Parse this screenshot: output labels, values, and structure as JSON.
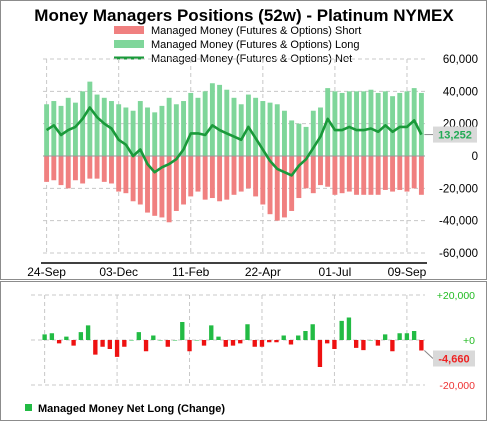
{
  "chart_data": [
    {
      "type": "bar+line",
      "title": "Money Managers Positions  (52w) - Platinum  NYMEX",
      "legend": [
        "Managed Money (Futures & Options)  Short",
        "Managed Money (Futures & Options)  Long",
        "Managed Money (Futures & Options)  Net"
      ],
      "legend_position": "top",
      "x_tick_labels": [
        "24-Sep",
        "03-Dec",
        "11-Feb",
        "22-Apr",
        "01-Jul",
        "09-Sep"
      ],
      "y_tick_labels": [
        "60,000",
        "40,000",
        "20,000",
        "0",
        "-20,000",
        "-40,000",
        "-60,000"
      ],
      "ylim": [
        -60000,
        60000
      ],
      "grid": true,
      "series": [
        {
          "name": "Managed Money (Futures & Options)  Long",
          "color": "#7fd69a",
          "values": [
            32000,
            34000,
            31000,
            36000,
            33000,
            40000,
            46000,
            38000,
            36000,
            34000,
            32000,
            30000,
            28000,
            34000,
            30000,
            27000,
            31000,
            36000,
            32000,
            34000,
            39000,
            36000,
            40000,
            45000,
            44000,
            41000,
            36000,
            32000,
            38000,
            36000,
            34000,
            33000,
            32000,
            28000,
            22000,
            20000,
            18000,
            28000,
            30000,
            42000,
            40000,
            39000,
            40000,
            40000,
            40000,
            41000,
            39000,
            40000,
            37000,
            39000,
            40000,
            42000,
            39000
          ]
        },
        {
          "name": "Managed Money (Futures & Options)  Short",
          "color": "#f08080",
          "values": [
            -16000,
            -15000,
            -18000,
            -20000,
            -15000,
            -17000,
            -14000,
            -14000,
            -16000,
            -17000,
            -22000,
            -23000,
            -28000,
            -30000,
            -35000,
            -37000,
            -38000,
            -41000,
            -34000,
            -30000,
            -25000,
            -22000,
            -27000,
            -26000,
            -28000,
            -27000,
            -24000,
            -22000,
            -20000,
            -25000,
            -30000,
            -36000,
            -40000,
            -38000,
            -34000,
            -26000,
            -20000,
            -23000,
            -18000,
            -19000,
            -24000,
            -23000,
            -22000,
            -24000,
            -24000,
            -24000,
            -24000,
            -21000,
            -22000,
            -21000,
            -22000,
            -20000,
            -24000
          ]
        },
        {
          "name": "Managed Money (Futures & Options)  Net",
          "color": "#1a9a3a",
          "values": [
            16000,
            19000,
            13000,
            16000,
            18000,
            23000,
            30000,
            24000,
            20000,
            17000,
            10000,
            7000,
            0,
            4000,
            -5000,
            -10000,
            -7000,
            -5000,
            -2000,
            4000,
            14000,
            14000,
            13000,
            19000,
            16000,
            14000,
            12000,
            10000,
            18000,
            11000,
            4000,
            -3000,
            -8000,
            -10000,
            -12000,
            -6000,
            -2000,
            5000,
            12000,
            23000,
            16000,
            16000,
            18000,
            16000,
            16000,
            17000,
            15000,
            19000,
            15000,
            18000,
            18000,
            22000,
            13252
          ]
        }
      ],
      "callout": {
        "value": 13252,
        "label": "13,252",
        "color": "#22aa55"
      }
    },
    {
      "type": "bar",
      "x_tick_labels": [],
      "y_tick_labels": [
        "+20,000",
        "+0",
        "-20,000"
      ],
      "ylim": [
        -20000,
        20000
      ],
      "grid": true,
      "series": [
        {
          "name": "Managed Money  Net Long (Change)",
          "pos_color": "#22bb44",
          "neg_color": "#ee1111",
          "values": [
            2500,
            3000,
            -1500,
            1500,
            -2500,
            3500,
            6500,
            -6500,
            -3000,
            -4000,
            -7500,
            -3000,
            0,
            3500,
            -5000,
            2000,
            0,
            -3000,
            0,
            8000,
            -5000,
            0,
            -2500,
            6500,
            1500,
            -3000,
            -2500,
            -1500,
            7000,
            -3000,
            -3000,
            -1000,
            -1000,
            2000,
            -2000,
            2000,
            4000,
            7000,
            -12000,
            -1500,
            -4000,
            8500,
            10000,
            -3500,
            -4500,
            0,
            -2500,
            2500,
            -5000,
            3000,
            3000,
            4000,
            -4660
          ]
        }
      ],
      "legend": [
        "Managed Money  Net Long (Change)"
      ],
      "legend_position": "bottom-left",
      "callout": {
        "value": -4660,
        "label": "-4,660",
        "color": "#ee2222"
      }
    }
  ],
  "ui": {
    "title": "Money Managers Positions  (52w) - Platinum  NYMEX",
    "legend_short": "Managed Money (Futures & Options)  Short",
    "legend_long": "Managed Money (Futures & Options)  Long",
    "legend_net": "Managed Money (Futures & Options)  Net",
    "legend_bottom": "Managed Money  Net Long (Change)"
  },
  "colors": {
    "long": "#7fd69a",
    "short": "#f08080",
    "net": "#1a9a3a",
    "pos": "#22bb44",
    "neg": "#ee1111",
    "callout_bg": "#d9d9d9"
  }
}
